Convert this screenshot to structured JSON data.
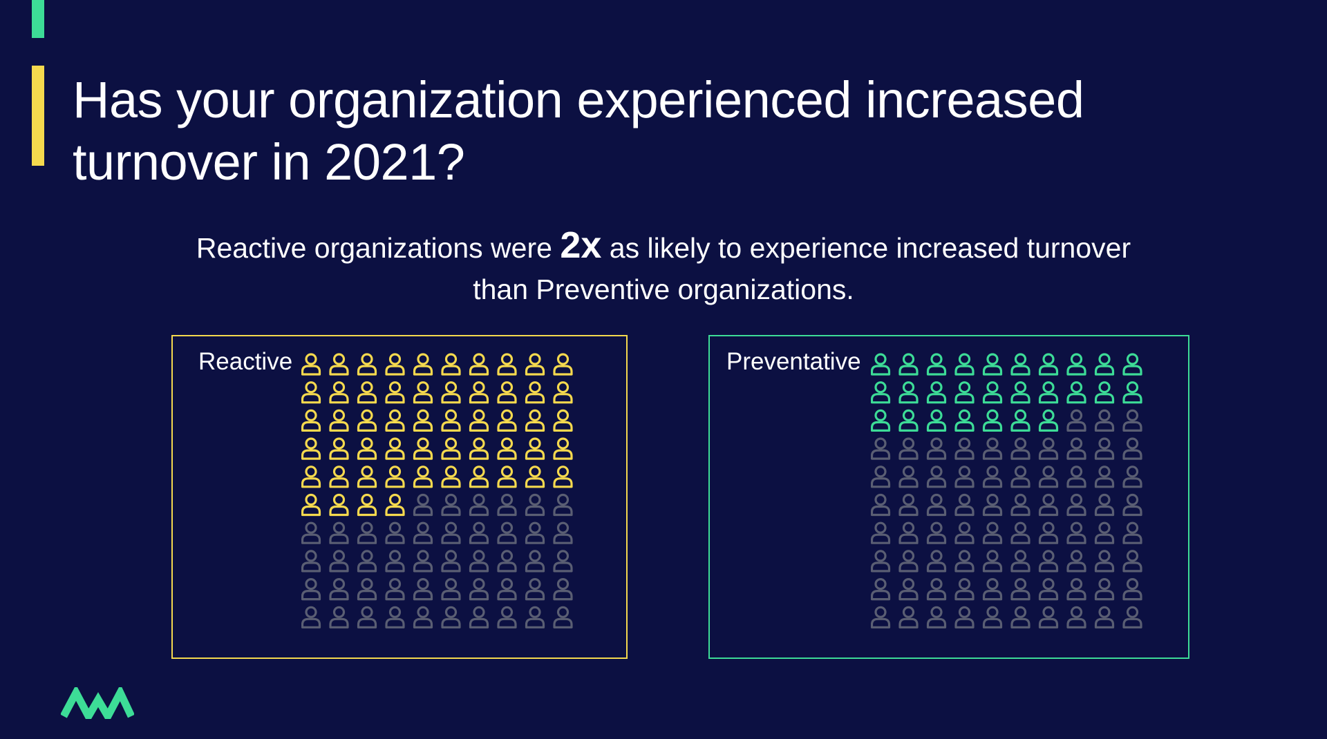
{
  "title": "Has your organization experienced increased turnover in 2021?",
  "subtitle": {
    "before": "Reactive organizations were ",
    "emphasis": "2x",
    "after": " as likely to experience increased turnover than Preventive organizations."
  },
  "colors": {
    "background": "#0c1042",
    "reactive": "#f5d94e",
    "preventive": "#3ddc97",
    "inactive_icon": "#5a5e73",
    "accent_top": "#3ddc97",
    "accent_title": "#f5d94e",
    "logo": "#3ddc97"
  },
  "chart_data": [
    {
      "type": "pictogram",
      "name": "Reactive",
      "total": 100,
      "highlighted": 54,
      "columns": 10,
      "rows": 10,
      "icon": "person-icon"
    },
    {
      "type": "pictogram",
      "name": "Preventative",
      "total": 100,
      "highlighted": 27,
      "columns": 10,
      "rows": 10,
      "icon": "person-icon"
    }
  ]
}
